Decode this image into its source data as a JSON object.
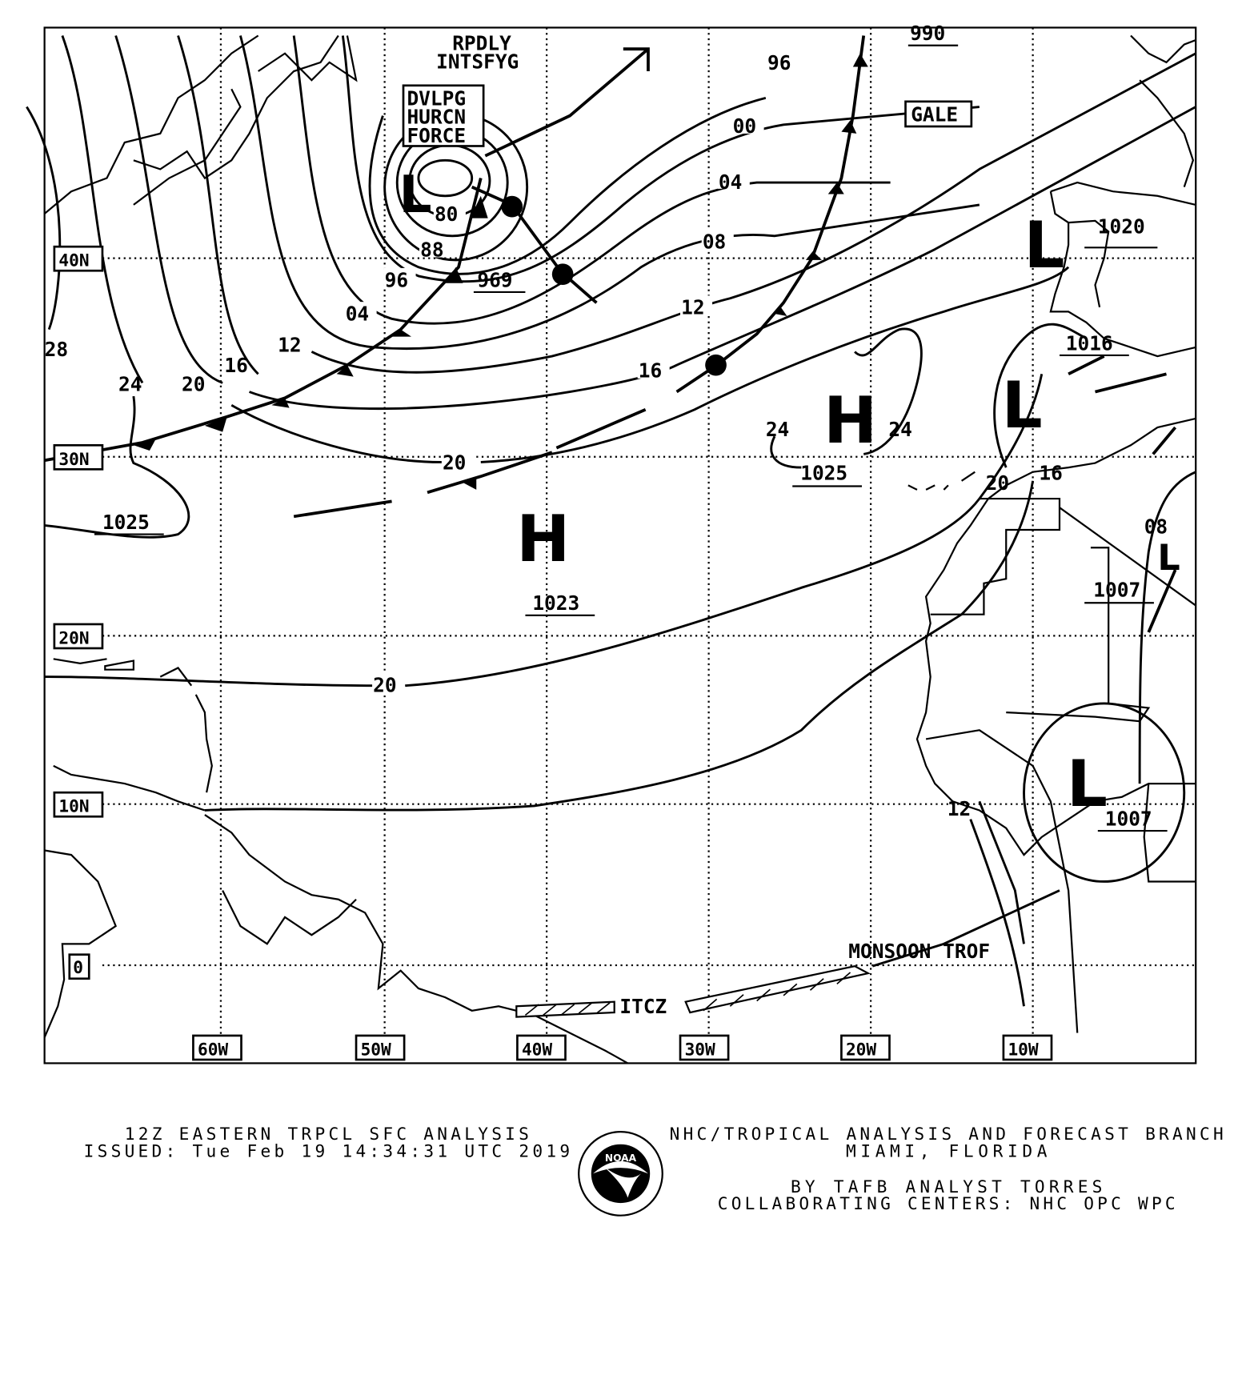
{
  "map": {
    "lon_labels": [
      "60W",
      "50W",
      "40W",
      "30W",
      "20W",
      "10W"
    ],
    "lat_labels": [
      "40N",
      "30N",
      "20N",
      "10N",
      "0"
    ],
    "isobar_labels": [
      "96",
      "00",
      "04",
      "08",
      "12",
      "16",
      "20",
      "20",
      "24",
      "24",
      "20",
      "16",
      "08",
      "12",
      "80",
      "88",
      "96",
      "04",
      "12",
      "16",
      "20",
      "24",
      "28"
    ],
    "pressure_values": [
      "969",
      "1020",
      "1016",
      "1025",
      "1025",
      "1023",
      "1007",
      "1007",
      "990"
    ],
    "centers": [
      "L",
      "L",
      "L",
      "L",
      "L",
      "H",
      "H"
    ],
    "annotations": {
      "rapidly": "RPDLY",
      "intensifying": "INTSFYG",
      "warning_box": [
        "DVLPG",
        "HURCN",
        "FORCE"
      ],
      "gale_box": "GALE",
      "itcz": "ITCZ",
      "monsoon": "MONSOON TROF"
    }
  },
  "footer": {
    "title": "12Z EASTERN TRPCL SFC ANALYSIS",
    "issued": "ISSUED: Tue Feb 19 14:34:31 UTC 2019",
    "org": "NHC/TROPICAL ANALYSIS AND FORECAST BRANCH",
    "location": "MIAMI,  FLORIDA",
    "analyst": "BY TAFB ANALYST  TORRES",
    "centers": "COLLABORATING CENTERS: NHC OPC WPC"
  },
  "logo": {
    "text": "NOAA",
    "icon": "noaa-logo-icon"
  }
}
